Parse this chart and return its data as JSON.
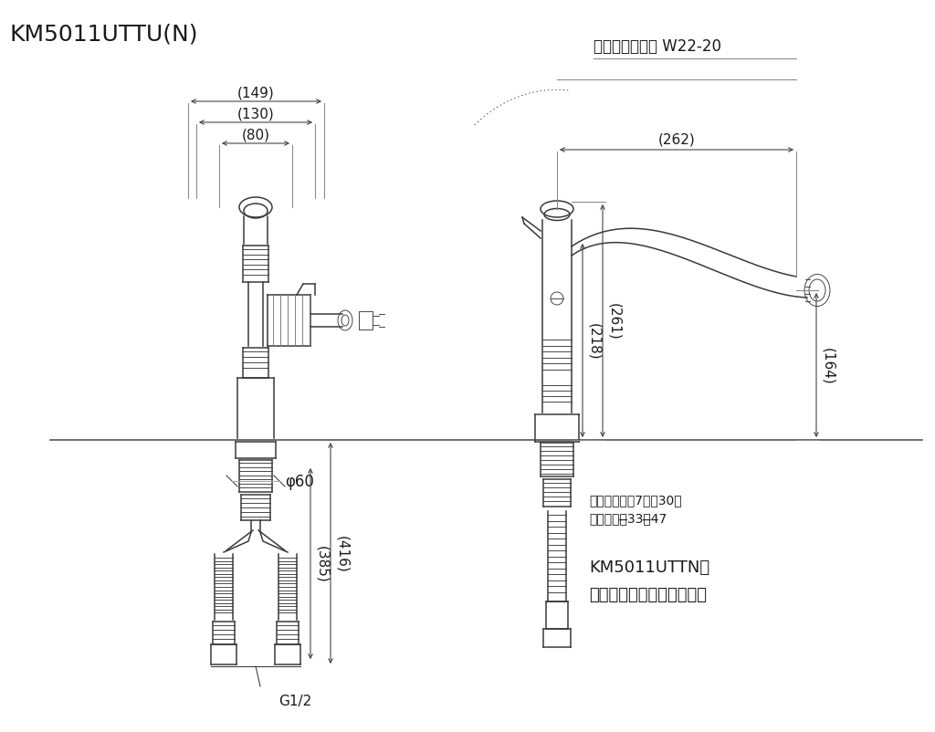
{
  "title": "KM5011UTTU(N)",
  "top_right_label": "泡沫器キャップ W22-20",
  "dim_149": "(149)",
  "dim_130": "(130)",
  "dim_80": "(80)",
  "dim_262": "(262)",
  "dim_218": "(218)",
  "dim_261": "(261)",
  "dim_164": "(164)",
  "dim_385": "(385)",
  "dim_416": "(416)",
  "dim_phi60": "φ60",
  "dim_G12": "G1/2",
  "note1": "取り付け板厚7㎜～30㎜",
  "note2": "取り付け穼̶33～̶47",
  "note3": "KM5011UTTNは",
  "note4": "分岐止水栓を含みません。",
  "line_color": "#3a3a3a",
  "bg_color": "#ffffff",
  "dim_color": "#1a1a1a",
  "surface_line_color": "#555555"
}
